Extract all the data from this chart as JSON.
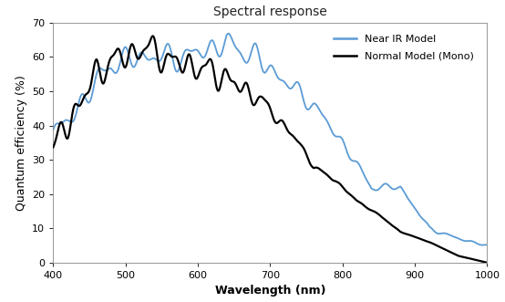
{
  "title": "Spectral response",
  "xlabel": "Wavelength (nm)",
  "ylabel": "Quantum efficiency (%)",
  "xlim": [
    400,
    1000
  ],
  "ylim": [
    0,
    70
  ],
  "yticks": [
    0,
    10,
    20,
    30,
    40,
    50,
    60,
    70
  ],
  "xticks": [
    400,
    500,
    600,
    700,
    800,
    900,
    1000
  ],
  "near_ir_color": "#5B9BD5",
  "normal_color": "#000000",
  "legend_labels": [
    "Near IR Model",
    "Normal Model (Mono)"
  ],
  "background_color": "#ffffff",
  "title_fontsize": 10,
  "axis_label_fontsize": 9,
  "tick_fontsize": 8
}
